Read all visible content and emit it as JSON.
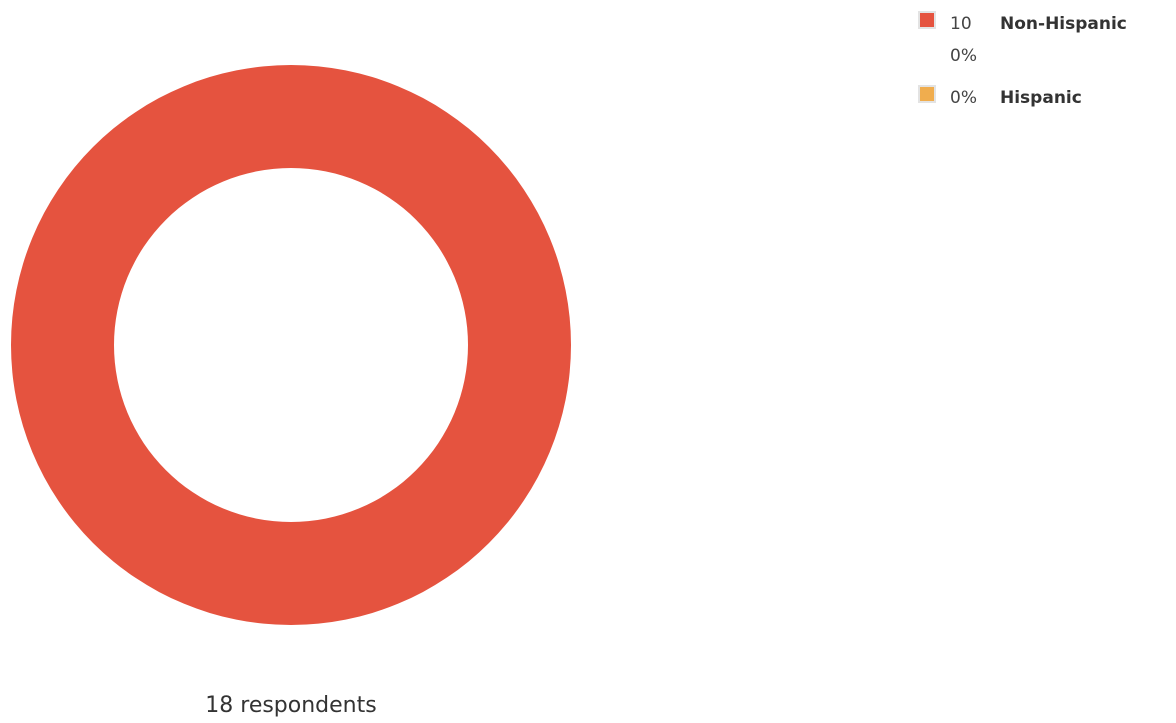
{
  "chart_data": {
    "type": "pie",
    "style": "donut",
    "categories": [
      "Non-Hispanic",
      "Hispanic"
    ],
    "values": [
      100,
      0
    ],
    "percent_labels": [
      "100%",
      "0%"
    ],
    "colors": [
      "#e5533f",
      "#f0ad4e"
    ],
    "legend_position": "top-right",
    "footer": "18 respondents"
  }
}
